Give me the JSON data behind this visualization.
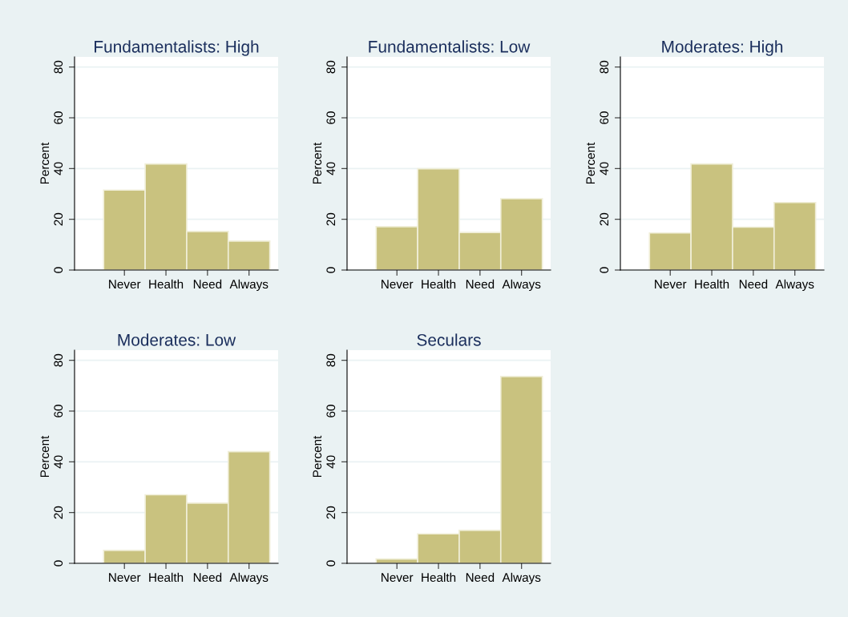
{
  "chart_data": [
    {
      "type": "bar",
      "title": "Fundamentalists: High",
      "ylabel": "Percent",
      "categories": [
        "Never",
        "Health",
        "Need",
        "Always"
      ],
      "values": [
        31.5,
        41.8,
        15.2,
        11.4
      ],
      "color": "#c9c27f",
      "ylim": [
        0,
        84
      ],
      "yticks": [
        0,
        20,
        40,
        60,
        80
      ],
      "grid": "y"
    },
    {
      "type": "bar",
      "title": "Fundamentalists: Low",
      "ylabel": "Percent",
      "categories": [
        "Never",
        "Health",
        "Need",
        "Always"
      ],
      "values": [
        17.1,
        39.9,
        14.8,
        28.1
      ],
      "color": "#c9c27f",
      "ylim": [
        0,
        84
      ],
      "yticks": [
        0,
        20,
        40,
        60,
        80
      ],
      "grid": "y"
    },
    {
      "type": "bar",
      "title": "Moderates: High",
      "ylabel": "Percent",
      "categories": [
        "Never",
        "Health",
        "Need",
        "Always"
      ],
      "values": [
        14.6,
        41.8,
        16.9,
        26.6
      ],
      "color": "#c9c27f",
      "ylim": [
        0,
        84
      ],
      "yticks": [
        0,
        20,
        40,
        60,
        80
      ],
      "grid": "y"
    },
    {
      "type": "bar",
      "title": "Moderates: Low",
      "ylabel": "Percent",
      "categories": [
        "Never",
        "Health",
        "Need",
        "Always"
      ],
      "values": [
        5.1,
        27.0,
        23.7,
        44.0
      ],
      "color": "#c9c27f",
      "ylim": [
        0,
        84
      ],
      "yticks": [
        0,
        20,
        40,
        60,
        80
      ],
      "grid": "y"
    },
    {
      "type": "bar",
      "title": "Seculars",
      "ylabel": "Percent",
      "categories": [
        "Never",
        "Health",
        "Need",
        "Always"
      ],
      "values": [
        1.7,
        11.6,
        13.0,
        73.6
      ],
      "color": "#c9c27f",
      "ylim": [
        0,
        84
      ],
      "yticks": [
        0,
        20,
        40,
        60,
        80
      ],
      "grid": "y"
    }
  ]
}
